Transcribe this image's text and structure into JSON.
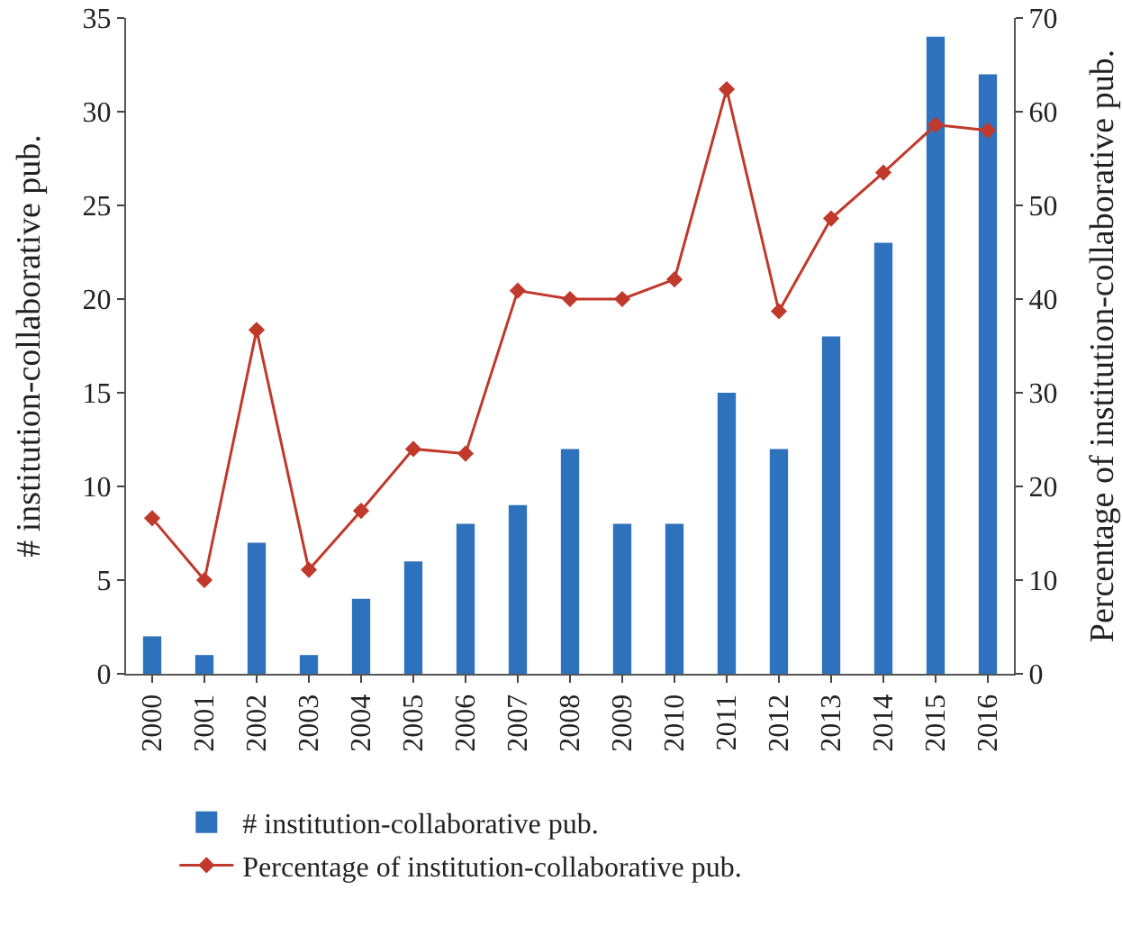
{
  "chart_data": {
    "type": "bar",
    "categories": [
      "2000",
      "2001",
      "2002",
      "2003",
      "2004",
      "2005",
      "2006",
      "2007",
      "2008",
      "2009",
      "2010",
      "2011",
      "2012",
      "2013",
      "2014",
      "2015",
      "2016"
    ],
    "series": [
      {
        "name": "# institution-collaborative pub.",
        "color": "#2e72bd",
        "values": [
          2,
          1,
          7,
          1,
          4,
          6,
          8,
          9,
          12,
          8,
          8,
          15,
          12,
          18,
          23,
          34,
          32
        ]
      },
      {
        "name": "Percentage of institution-collaborative pub.",
        "type": "line",
        "axis": "y2",
        "color": "#c0392b",
        "marker": "diamond",
        "values": [
          16.6,
          10,
          36.7,
          11.1,
          17.4,
          24,
          23.5,
          40.9,
          40,
          40,
          42.1,
          62.4,
          38.7,
          48.6,
          53.5,
          58.6,
          58
        ]
      }
    ],
    "ylabel": "# institution-collaborative pub.",
    "y2label": "Percentage of institution-collaborative pub.",
    "ylim": [
      0,
      35
    ],
    "yticks": [
      0,
      5,
      10,
      15,
      20,
      25,
      30,
      35
    ],
    "y2lim": [
      0,
      70
    ],
    "y2ticks": [
      0,
      10,
      20,
      30,
      40,
      50,
      60,
      70
    ],
    "grid": false,
    "legend": "bottom"
  }
}
